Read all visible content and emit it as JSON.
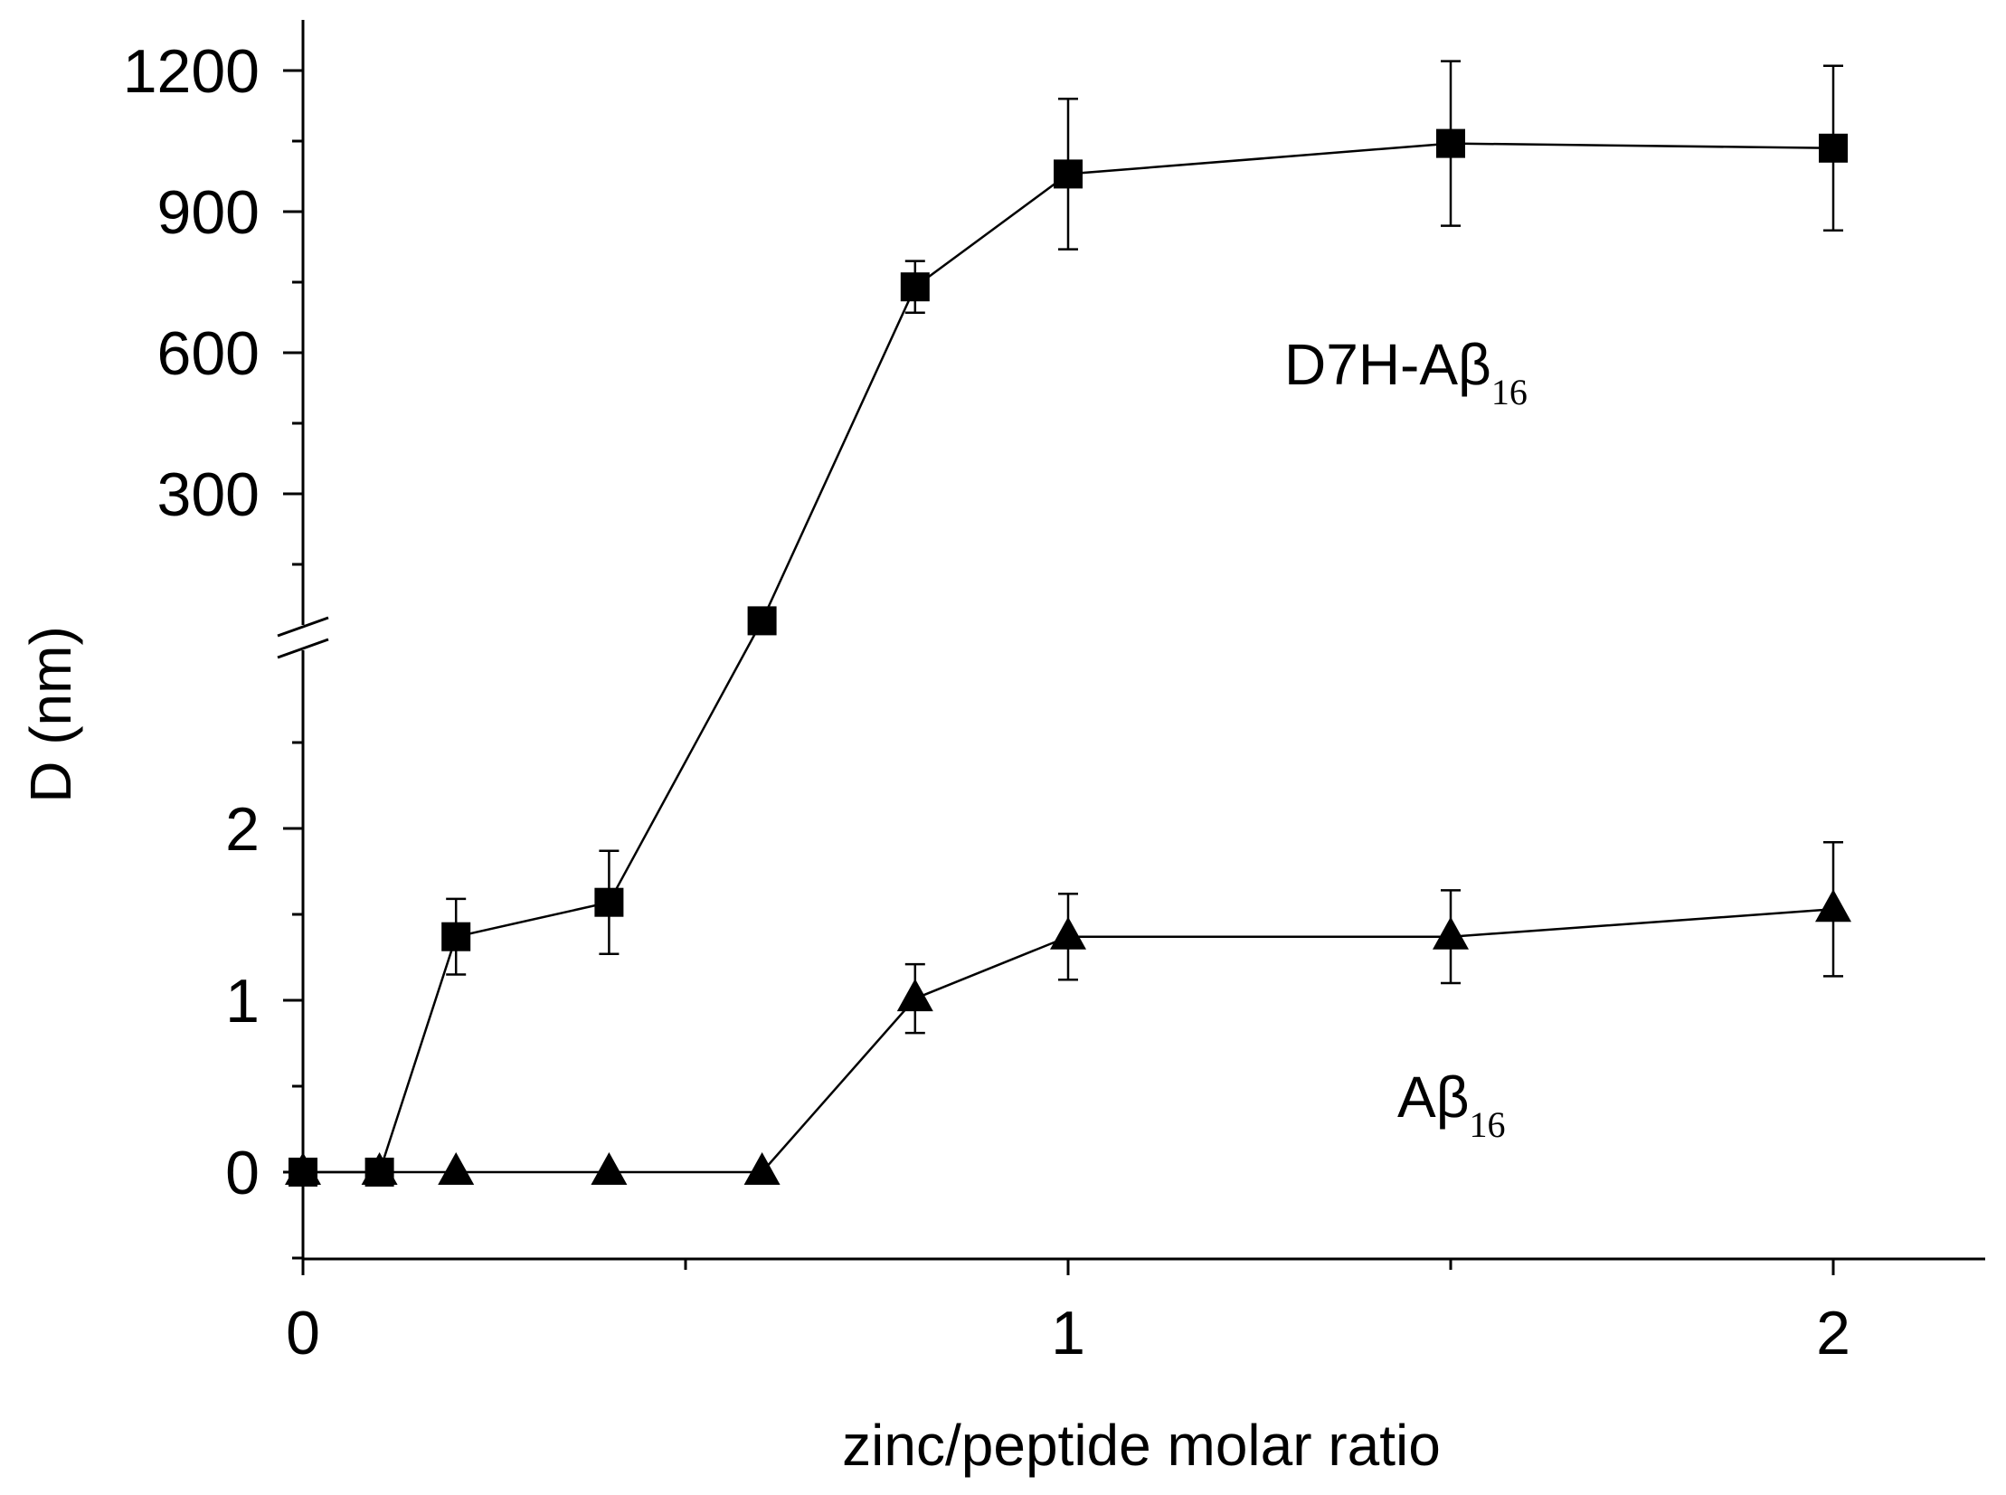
{
  "chart_data": {
    "type": "line",
    "xlabel": "zinc/peptide molar ratio",
    "ylabel": "D (nm)",
    "xlim": [
      0,
      2.2
    ],
    "x_ticks": [
      "0",
      "1",
      "2"
    ],
    "y_axis_broken": true,
    "y_ticks_lower": [
      "0",
      "1",
      "2"
    ],
    "y_ticks_upper": [
      "300",
      "600",
      "900",
      "1200"
    ],
    "ylim_lower": [
      -0.5,
      2.5
    ],
    "ylim_upper": [
      0,
      1200
    ],
    "grid": false,
    "legend": "none",
    "series": [
      {
        "name": "D7H-Aβ16",
        "marker": "square",
        "points": [
          {
            "x": 0,
            "y": 0,
            "err": 0,
            "segment": "lower"
          },
          {
            "x": 0.1,
            "y": 0,
            "err": 0,
            "segment": "lower"
          },
          {
            "x": 0.2,
            "y": 1.37,
            "err": 0.22,
            "segment": "lower"
          },
          {
            "x": 0.4,
            "y": 1.57,
            "err": 0.3,
            "segment": "lower"
          },
          {
            "x": 0.6,
            "y": 30,
            "err": 0,
            "segment": "upper"
          },
          {
            "x": 0.8,
            "y": 740,
            "err": 55,
            "segment": "upper"
          },
          {
            "x": 1.0,
            "y": 980,
            "err": 160,
            "segment": "upper"
          },
          {
            "x": 1.5,
            "y": 1045,
            "err": 175,
            "segment": "upper"
          },
          {
            "x": 2.0,
            "y": 1035,
            "err": 175,
            "segment": "upper"
          }
        ]
      },
      {
        "name": "Aβ16",
        "marker": "triangle",
        "points": [
          {
            "x": 0,
            "y": 0,
            "err": 0,
            "segment": "lower"
          },
          {
            "x": 0.1,
            "y": 0,
            "err": 0,
            "segment": "lower"
          },
          {
            "x": 0.2,
            "y": 0,
            "err": 0,
            "segment": "lower"
          },
          {
            "x": 0.4,
            "y": 0,
            "err": 0,
            "segment": "lower"
          },
          {
            "x": 0.6,
            "y": 0,
            "err": 0,
            "segment": "lower"
          },
          {
            "x": 0.8,
            "y": 1.01,
            "err": 0.2,
            "segment": "lower"
          },
          {
            "x": 1.0,
            "y": 1.37,
            "err": 0.25,
            "segment": "lower"
          },
          {
            "x": 1.5,
            "y": 1.37,
            "err": 0.27,
            "segment": "lower"
          },
          {
            "x": 2.0,
            "y": 1.53,
            "err": 0.39,
            "segment": "lower"
          }
        ]
      }
    ],
    "annotations": [
      {
        "label_main": "D7H-Aβ",
        "label_sub": "16"
      },
      {
        "label_main": "Aβ",
        "label_sub": "16"
      }
    ]
  }
}
